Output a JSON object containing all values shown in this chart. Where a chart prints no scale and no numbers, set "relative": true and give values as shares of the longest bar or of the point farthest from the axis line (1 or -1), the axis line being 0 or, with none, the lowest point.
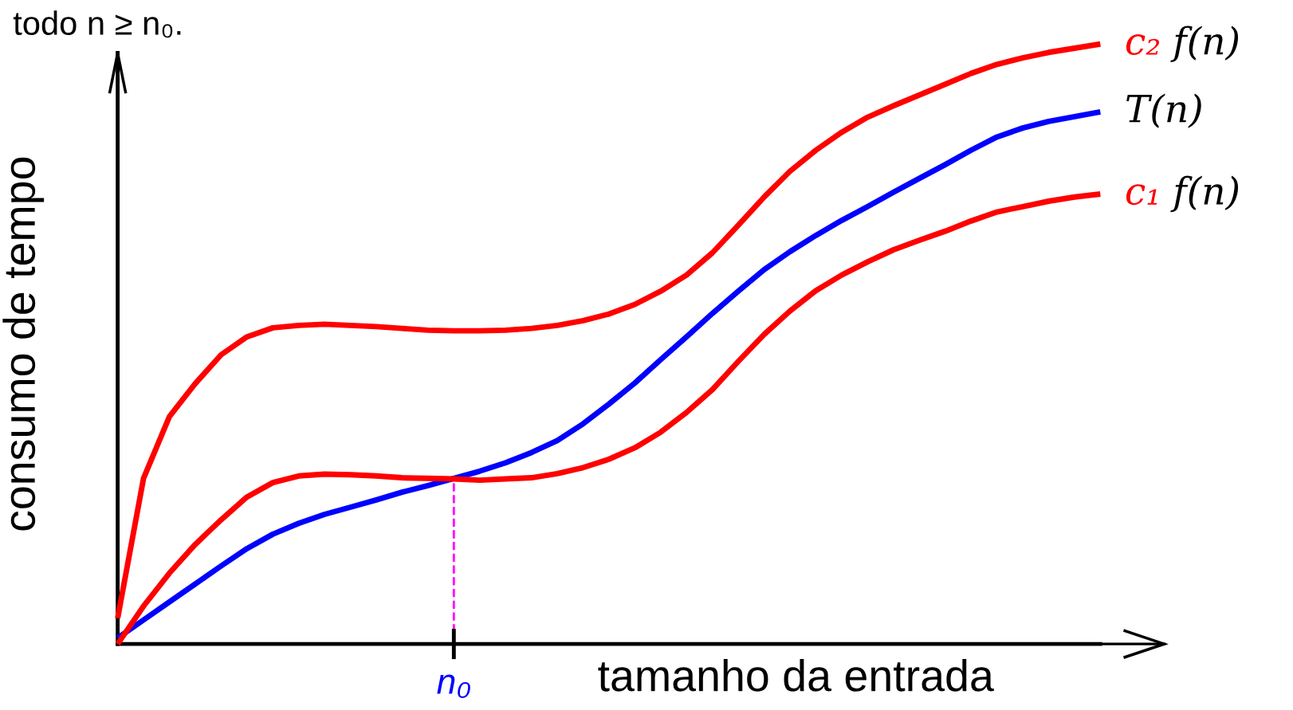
{
  "chart_data": {
    "type": "line",
    "relative": true,
    "xlabel": "tamanho da entrada",
    "ylabel": "consumo de tempo",
    "annotations": [
      "todo n ≥ n₀."
    ],
    "ref_lines": [
      {
        "axis": "x",
        "label": "n₀",
        "color": "#ff00ff",
        "line_style": "dashed"
      }
    ],
    "categories": [
      null,
      null,
      null,
      null,
      null,
      null,
      null,
      null,
      null,
      null,
      null,
      null,
      null,
      null,
      null,
      null,
      null,
      null,
      null,
      null,
      null,
      null,
      null,
      null,
      null,
      null,
      null,
      null,
      null,
      null,
      null,
      null,
      null,
      null,
      null,
      null,
      null,
      null,
      null
    ],
    "series": [
      {
        "name": "c₂ f(n)",
        "color": "#ff0000",
        "values": [
          0.043,
          0.276,
          0.379,
          0.434,
          0.482,
          0.512,
          0.527,
          0.531,
          0.533,
          0.531,
          0.529,
          0.526,
          0.523,
          0.522,
          0.522,
          0.523,
          0.526,
          0.531,
          0.539,
          0.55,
          0.566,
          0.588,
          0.615,
          0.652,
          0.698,
          0.745,
          0.788,
          0.823,
          0.853,
          0.878,
          0.897,
          0.915,
          0.933,
          0.951,
          0.966,
          0.977,
          0.986,
          0.993,
          1
        ]
      },
      {
        "name": "T(n)",
        "color": "#0000ff",
        "values": [
          0.01,
          0.04,
          0.07,
          0.1,
          0.13,
          0.159,
          0.183,
          0.201,
          0.216,
          0.228,
          0.24,
          0.253,
          0.264,
          0.276,
          0.288,
          0.302,
          0.319,
          0.339,
          0.367,
          0.4,
          0.435,
          0.474,
          0.512,
          0.551,
          0.588,
          0.624,
          0.654,
          0.681,
          0.706,
          0.729,
          0.753,
          0.776,
          0.799,
          0.823,
          0.845,
          0.86,
          0.871,
          0.879,
          0.887
        ]
      },
      {
        "name": "c₁ f(n)",
        "color": "#ff0000",
        "values": [
          0,
          0.063,
          0.118,
          0.166,
          0.207,
          0.245,
          0.269,
          0.28,
          0.283,
          0.282,
          0.28,
          0.277,
          0.276,
          0.275,
          0.273,
          0.275,
          0.277,
          0.284,
          0.294,
          0.308,
          0.327,
          0.353,
          0.386,
          0.424,
          0.471,
          0.516,
          0.555,
          0.589,
          0.615,
          0.637,
          0.657,
          0.673,
          0.688,
          0.705,
          0.72,
          0.729,
          0.738,
          0.745,
          0.75
        ]
      }
    ]
  }
}
